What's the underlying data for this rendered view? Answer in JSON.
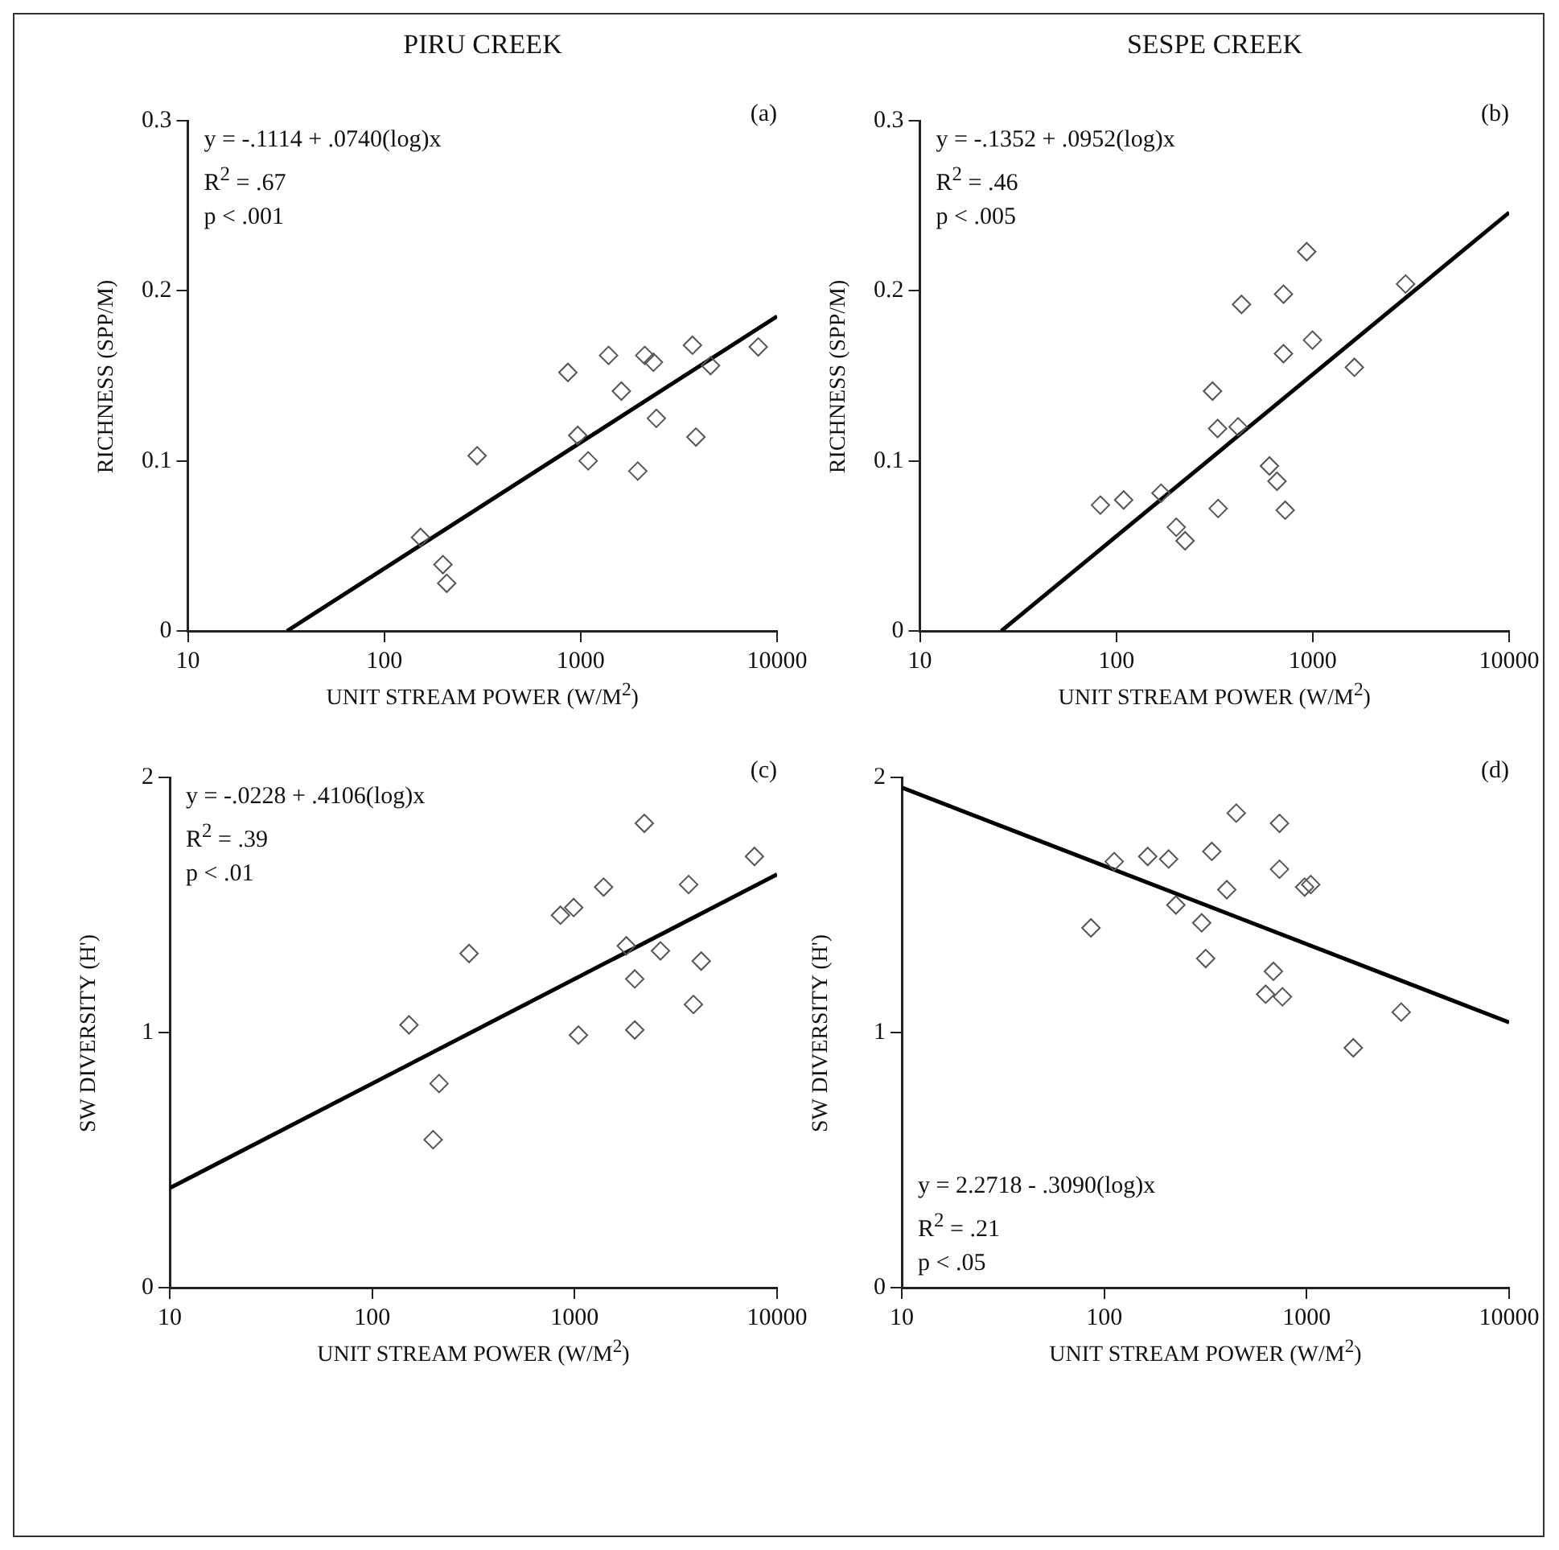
{
  "chart_data": [
    {
      "type": "scatter",
      "title": "PIRU CREEK",
      "xlabel": "UNIT STREAM POWER (W/M$^{2}$)",
      "ylabel": "RICHNESS (SPP/M)",
      "log": "x",
      "xlim": [
        10,
        10000
      ],
      "xticks": [
        10,
        100,
        1000,
        10000
      ],
      "ylim": [
        0,
        0.3
      ],
      "yticks": [
        0,
        0.1,
        0.2,
        0.3
      ],
      "legend": false,
      "grid": false,
      "annotations": [
        "(a)",
        "y = -.1114 + .0740(log)x",
        "R$^{2}$ = .67",
        "p < .001"
      ],
      "series": [
        {
          "marker": "diamond",
          "color": "#555555",
          "x": [
            153,
            199,
            208,
            297,
            861,
            966,
            1092,
            1387,
            1611,
            1953,
            2120,
            2347,
            2428,
            3707,
            3863,
            4585,
            8017
          ],
          "values": [
            0.055,
            0.039,
            0.028,
            0.103,
            0.152,
            0.115,
            0.1,
            0.162,
            0.141,
            0.094,
            0.162,
            0.158,
            0.125,
            0.168,
            0.114,
            0.156,
            0.167
          ]
        },
        {
          "type": "line",
          "marker": "none",
          "color": "#000000",
          "x": [
            32,
            10000
          ],
          "values": [
            0,
            0.185
          ]
        }
      ]
    },
    {
      "type": "scatter",
      "title": "SESPE CREEK",
      "xlabel": "UNIT STREAM POWER (W/M$^{2}$)",
      "ylabel": "RICHNESS (SPP/M)",
      "log": "x",
      "xlim": [
        10,
        10000
      ],
      "xticks": [
        10,
        100,
        1000,
        10000
      ],
      "ylim": [
        0,
        0.3
      ],
      "yticks": [
        0,
        0.1,
        0.2,
        0.3
      ],
      "legend": false,
      "grid": false,
      "annotations": [
        "(b)",
        "y = -.1352 + .0952(log)x",
        "R$^{2}$ = .46",
        "p < .005"
      ],
      "series": [
        {
          "marker": "diamond",
          "color": "#555555",
          "x": [
            83,
            109,
            169,
            202,
            224,
            309,
            328,
            330,
            417,
            434,
            602,
            658,
            710,
            710,
            724,
            932,
            997,
            1630,
            2970
          ],
          "values": [
            0.074,
            0.077,
            0.081,
            0.061,
            0.053,
            0.141,
            0.119,
            0.072,
            0.12,
            0.192,
            0.097,
            0.088,
            0.198,
            0.163,
            0.071,
            0.223,
            0.171,
            0.155,
            0.204
          ]
        },
        {
          "type": "line",
          "marker": "none",
          "color": "#000000",
          "x": [
            26,
            10000
          ],
          "values": [
            0,
            0.246
          ]
        }
      ]
    },
    {
      "type": "scatter",
      "xlabel": "UNIT STREAM POWER (W/M$^{2}$)",
      "ylabel": "SW DIVERSITY (H')",
      "log": "x",
      "xlim": [
        10,
        10000
      ],
      "xticks": [
        10,
        100,
        1000,
        10000
      ],
      "ylim": [
        0,
        2
      ],
      "yticks": [
        0,
        1,
        2
      ],
      "legend": false,
      "grid": false,
      "annotations": [
        "(c)",
        "y = -.0228 + .4106(log)x",
        "R$^{2}$ = .39",
        "p < .01"
      ],
      "series": [
        {
          "marker": "diamond",
          "color": "#555555",
          "x": [
            152,
            214,
            200,
            301,
            851,
            989,
            1044,
            1390,
            1800,
            1981,
            1981,
            2209,
            2654,
            3655,
            3862,
            4220,
            7730
          ],
          "values": [
            1.03,
            0.8,
            0.58,
            1.31,
            1.46,
            1.49,
            0.99,
            1.57,
            1.34,
            1.21,
            1.01,
            1.82,
            1.32,
            1.58,
            1.11,
            1.28,
            1.69
          ]
        },
        {
          "type": "line",
          "marker": "none",
          "color": "#000000",
          "x": [
            10,
            10000
          ],
          "values": [
            0.39,
            1.62
          ]
        }
      ]
    },
    {
      "type": "scatter",
      "xlabel": "UNIT STREAM POWER (W/M$^{2}$)",
      "ylabel": "SW DIVERSITY (H')",
      "log": "x",
      "xlim": [
        10,
        10000
      ],
      "xticks": [
        10,
        100,
        1000,
        10000
      ],
      "ylim": [
        0,
        2
      ],
      "yticks": [
        0,
        1,
        2
      ],
      "legend": false,
      "grid": false,
      "annotations": [
        "(d)",
        "y = 2.2718 - .3090(log)x",
        "R$^{2}$ = .21",
        "p < .05"
      ],
      "series": [
        {
          "marker": "diamond",
          "color": "#555555",
          "x": [
            86,
            112,
            164,
            208,
            226,
            303,
            317,
            340,
            403,
            449,
            627,
            685,
            734,
            734,
            759,
            977,
            1047,
            1700,
            2931
          ],
          "values": [
            1.41,
            1.67,
            1.69,
            1.68,
            1.5,
            1.43,
            1.29,
            1.71,
            1.56,
            1.86,
            1.15,
            1.24,
            1.64,
            1.82,
            1.14,
            1.57,
            1.58,
            0.94,
            1.08
          ]
        },
        {
          "type": "line",
          "marker": "none",
          "color": "#000000",
          "x": [
            10,
            10000
          ],
          "values": [
            1.96,
            1.04
          ]
        }
      ]
    }
  ]
}
